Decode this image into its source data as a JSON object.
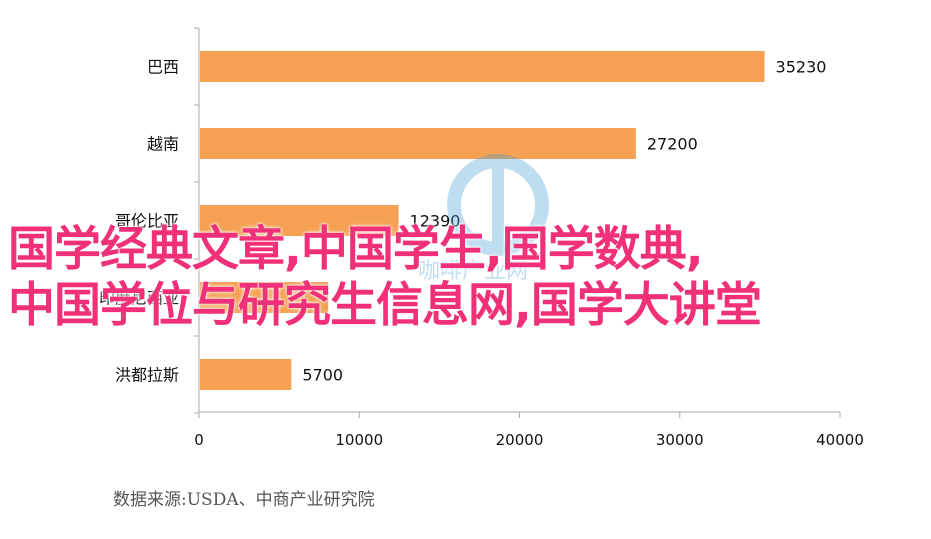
{
  "chart_data": {
    "type": "bar",
    "orientation": "horizontal",
    "categories": [
      "巴西",
      "越南",
      "哥伦比亚",
      "印度尼西亚",
      "洪都拉斯"
    ],
    "values": [
      35230,
      27200,
      12390,
      8000,
      5700
    ],
    "value_labels": [
      "35230",
      "27200",
      "12390",
      "",
      "5700"
    ],
    "xlim": [
      0,
      40000
    ],
    "x_ticks": [
      "0",
      "10000",
      "20000",
      "30000",
      "40000"
    ],
    "bar_color": "#f5a052",
    "grid": false
  },
  "overlay_text": {
    "line1": "国学经典文章,中国学生,国学数典,",
    "line2": "中国学位与研究生信息网,国学大讲堂"
  },
  "source_note": "数据来源:USDA、中商产业研究院",
  "watermark_text": "咖啡产业网",
  "colors": {
    "overlay": "#f0317a",
    "bar": "#f5a052",
    "axis": "#aaaaaa"
  }
}
